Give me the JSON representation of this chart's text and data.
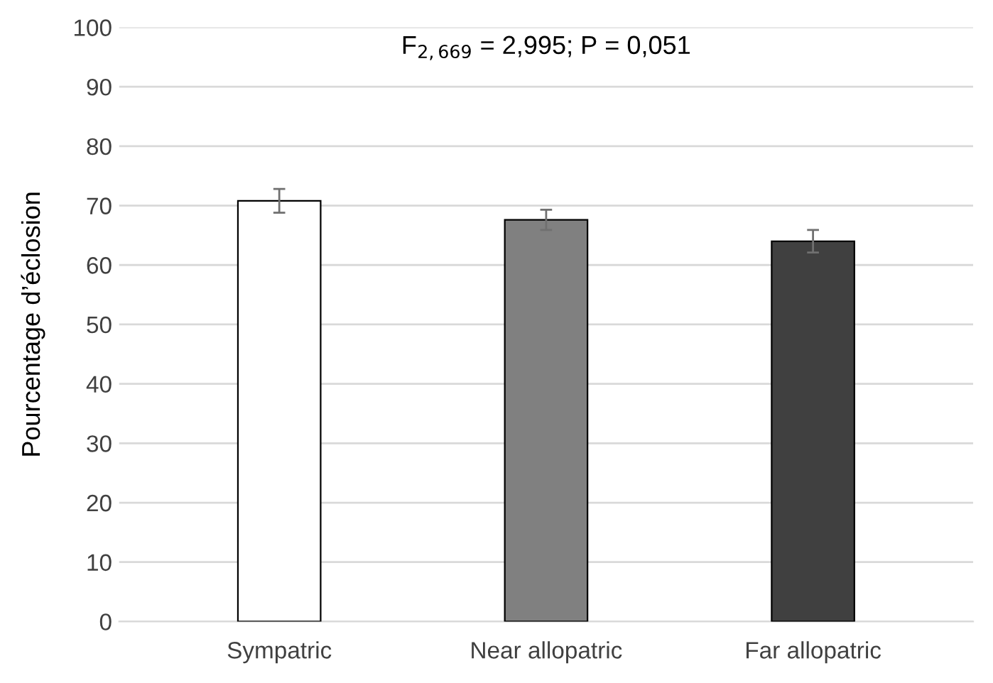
{
  "chart_data": {
    "type": "bar",
    "ylabel": "Pourcentage d’éclosion",
    "categories": [
      "Sympatric",
      "Near allopatric",
      "Far allopatric"
    ],
    "values": [
      70.8,
      67.6,
      64.0
    ],
    "colors": [
      "#ffffff",
      "#808080",
      "#404040"
    ],
    "errors": [
      2.0,
      1.7,
      1.9
    ],
    "ylim": [
      0,
      100
    ],
    "yticks": [
      0,
      10,
      20,
      30,
      40,
      50,
      60,
      70,
      80,
      90,
      100
    ],
    "grid": "y",
    "annotations": [
      "F$_{2,669}$ = 2,995; P = 0,051"
    ]
  }
}
